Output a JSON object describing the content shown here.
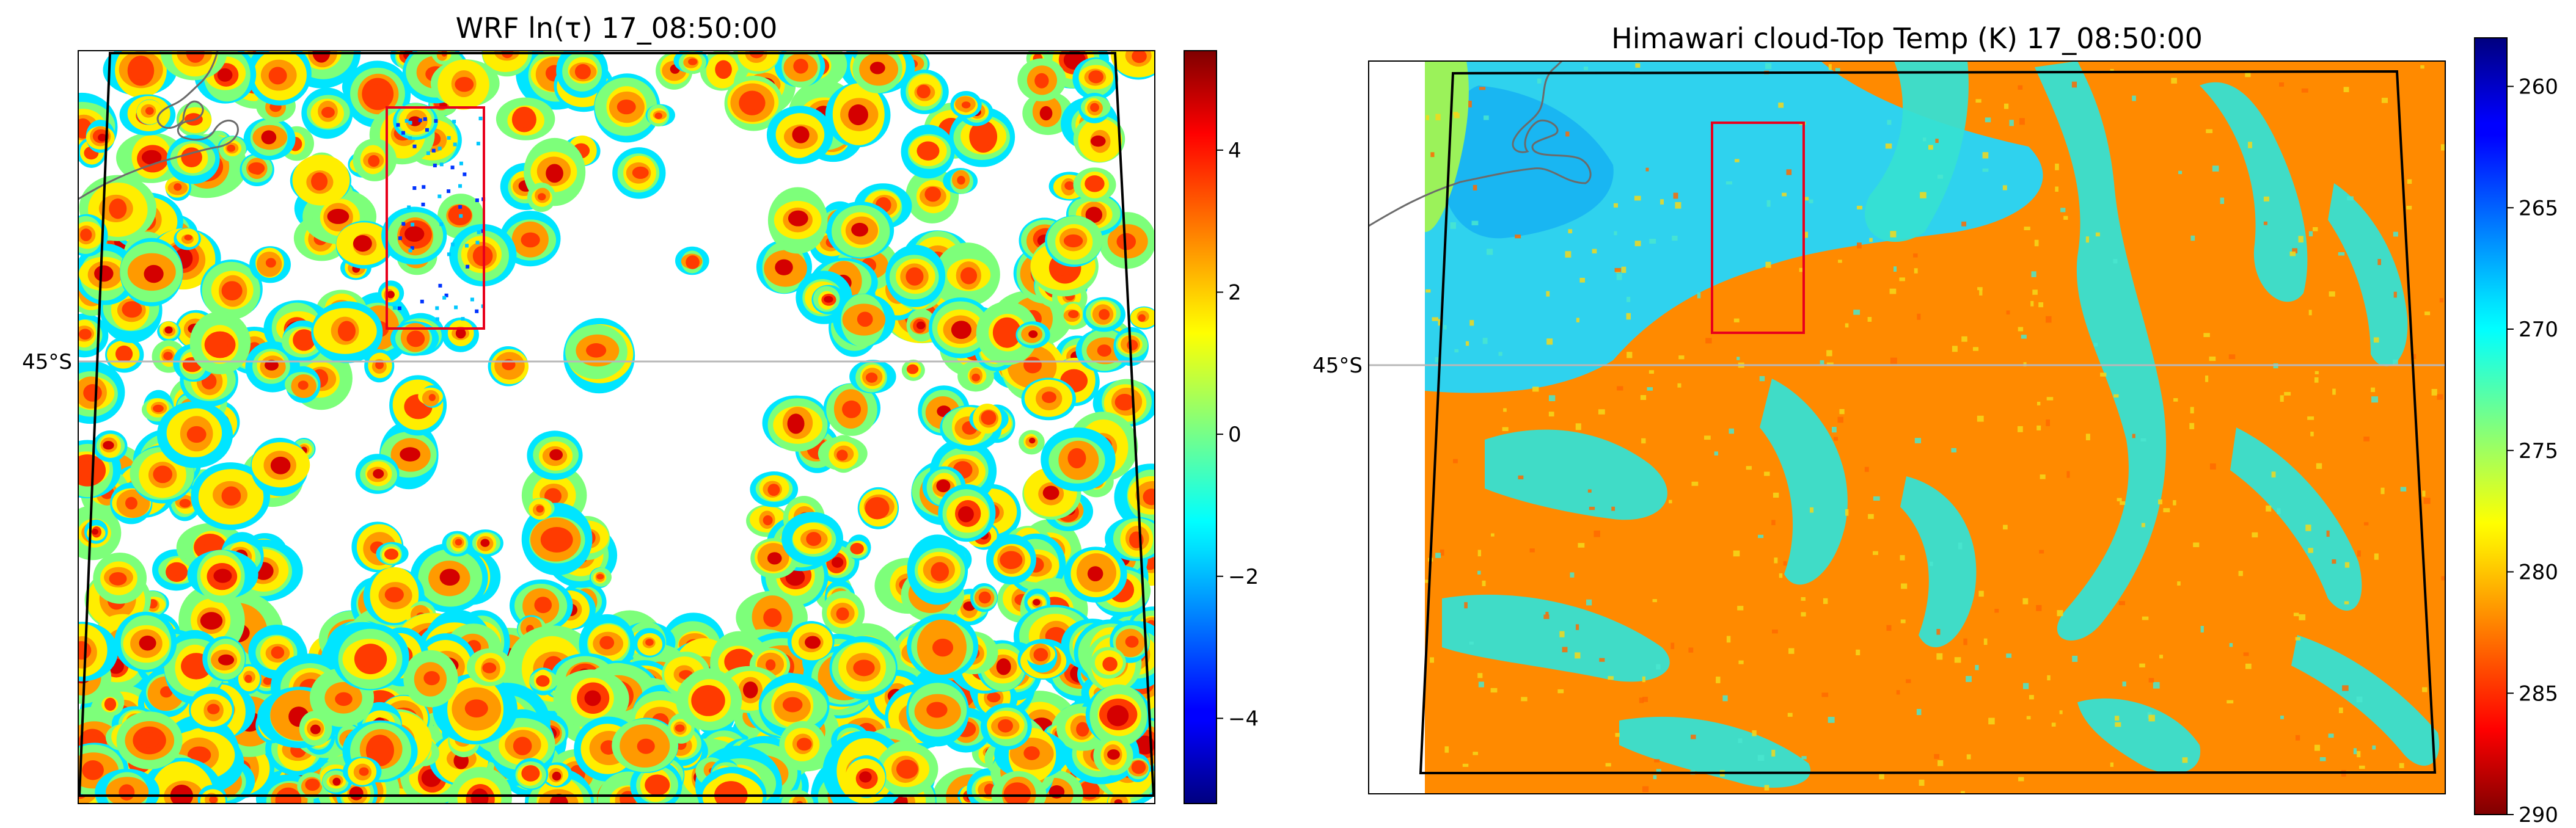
{
  "chart_data": [
    {
      "type": "heatmap",
      "title": "WRF ln(τ) 17_08:50:00",
      "variable": "ln(τ)",
      "colormap": "jet",
      "colorbar": {
        "min": -5.2,
        "max": 5.4,
        "ticks": [
          -4,
          -2,
          0,
          2,
          4
        ],
        "tick_labels": [
          "−4",
          "−2",
          "0",
          "2",
          "4"
        ]
      },
      "lat_gridline_label": "45°S",
      "highlight_box_color": "#e8001c",
      "domain_outline_color": "#000000",
      "coastline_color": "#6b6b6b",
      "grid": "latitude line only",
      "background_missing": "white"
    },
    {
      "type": "heatmap",
      "title": "Himawari cloud-Top Temp (K) 17_08:50:00",
      "variable": "cloud-top temperature (K)",
      "colormap": "jet_r",
      "colorbar": {
        "min": 258,
        "max": 290,
        "ticks": [
          260,
          265,
          270,
          275,
          280,
          285,
          290
        ],
        "tick_labels": [
          "260",
          "265",
          "270",
          "275",
          "280",
          "285",
          "290"
        ]
      },
      "lat_gridline_label": "45°S",
      "highlight_box_color": "#e8001c",
      "domain_outline_color": "#000000",
      "coastline_color": "#6b6b6b",
      "grid": "latitude line only"
    }
  ]
}
